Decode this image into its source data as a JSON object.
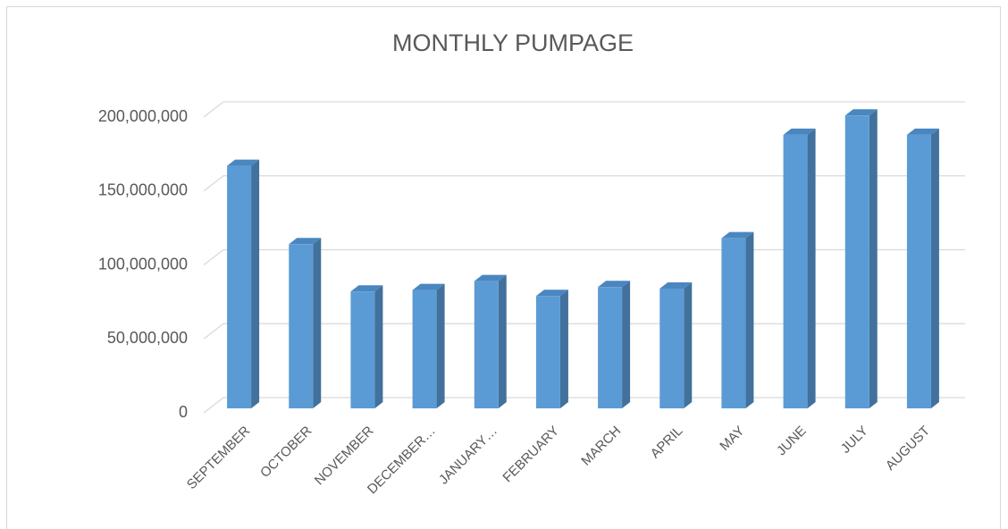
{
  "chart_data": {
    "type": "bar3d",
    "title": "MONTHLY PUMPAGE",
    "categories": [
      "SEPTEMBER",
      "OCTOBER",
      "NOVEMBER",
      "DECEMBER…",
      "JANUARY…",
      "FEBRUARY",
      "MARCH",
      "APRIL",
      "MAY",
      "JUNE",
      "JULY",
      "AUGUST"
    ],
    "values": [
      164000000,
      111000000,
      79000000,
      80000000,
      86000000,
      76000000,
      82000000,
      81000000,
      115000000,
      185000000,
      198000000,
      185000000
    ],
    "color": "#5b9bd5",
    "ylim": [
      0,
      200000000
    ],
    "yticks": [
      {
        "value": 0,
        "label": "0"
      },
      {
        "value": 50000000,
        "label": "50,000,000"
      },
      {
        "value": 100000000,
        "label": "100,000,000"
      },
      {
        "value": 150000000,
        "label": "150,000,000"
      },
      {
        "value": 200000000,
        "label": "200,000,000"
      }
    ],
    "grid": true
  }
}
